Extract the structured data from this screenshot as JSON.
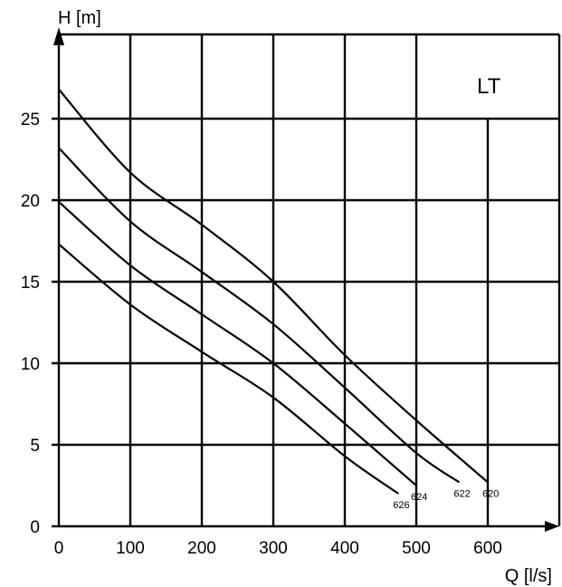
{
  "chart_data": {
    "type": "line",
    "title": "LT",
    "xlabel": "Q [l/s]",
    "ylabel": "H [m]",
    "xlim": [
      0,
      700
    ],
    "ylim": [
      0,
      30
    ],
    "x_ticks": [
      0,
      100,
      200,
      300,
      400,
      500,
      600
    ],
    "y_ticks": [
      0,
      5,
      10,
      15,
      20,
      25
    ],
    "grid": true,
    "series": [
      {
        "name": "620",
        "x": [
          0,
          100,
          200,
          300,
          400,
          500,
          600
        ],
        "y": [
          26.8,
          21.7,
          18.5,
          15.0,
          10.5,
          6.5,
          2.7
        ]
      },
      {
        "name": "622",
        "x": [
          0,
          100,
          200,
          300,
          400,
          500,
          560
        ],
        "y": [
          23.2,
          18.7,
          15.6,
          12.4,
          8.5,
          4.5,
          2.7
        ]
      },
      {
        "name": "624",
        "x": [
          0,
          100,
          200,
          300,
          400,
          500
        ],
        "y": [
          19.9,
          16.0,
          13.0,
          10.0,
          6.3,
          2.5
        ]
      },
      {
        "name": "626",
        "x": [
          0,
          100,
          200,
          300,
          400,
          475
        ],
        "y": [
          17.3,
          13.6,
          10.7,
          7.9,
          4.3,
          2.0
        ]
      }
    ]
  }
}
